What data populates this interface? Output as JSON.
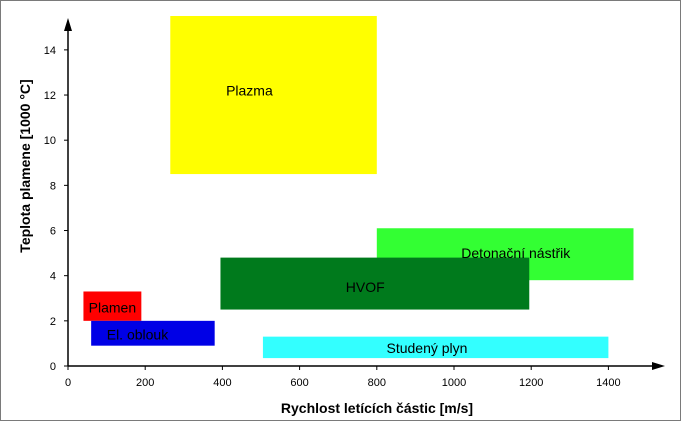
{
  "chart_data": {
    "type": "range-box",
    "title": "",
    "xlabel": "Rychlost letících částic [m/s]",
    "ylabel": "Teplota plamene [1000 °C]",
    "xlim": [
      0,
      1500
    ],
    "ylim": [
      0,
      15.5
    ],
    "x_ticks": [
      0,
      200,
      400,
      600,
      800,
      1000,
      1200,
      1400
    ],
    "y_ticks": [
      0,
      2,
      4,
      6,
      8,
      10,
      12,
      14
    ],
    "grid": false,
    "regions": [
      {
        "name": "Plazma",
        "x": [
          265,
          800
        ],
        "y": [
          8.5,
          16.2
        ],
        "color": "#ffff00",
        "label_at": [
          470,
          12.2
        ]
      },
      {
        "name": "Detonační nástřik",
        "x": [
          800,
          1465
        ],
        "y": [
          3.8,
          6.1
        ],
        "color": "#33ff33",
        "label_at": [
          1160,
          5.0
        ]
      },
      {
        "name": "HVOF",
        "x": [
          395,
          1195
        ],
        "y": [
          2.5,
          4.8
        ],
        "color": "#007a1c",
        "label_at": [
          770,
          3.5
        ]
      },
      {
        "name": "Plamen",
        "x": [
          40,
          190
        ],
        "y": [
          2.0,
          3.3
        ],
        "color": "#ff0000",
        "label_at": [
          115,
          2.6
        ]
      },
      {
        "name": "El. oblouk",
        "x": [
          60,
          380
        ],
        "y": [
          0.9,
          2.0
        ],
        "color": "#0000e6",
        "label_at": [
          180,
          1.4
        ]
      },
      {
        "name": "Studený plyn",
        "x": [
          505,
          1400
        ],
        "y": [
          0.35,
          1.3
        ],
        "color": "#33ffff",
        "label_at": [
          930,
          0.8
        ]
      }
    ]
  }
}
